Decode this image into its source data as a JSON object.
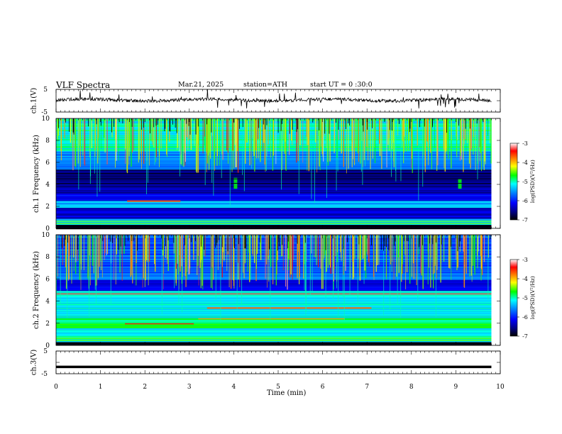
{
  "header": {
    "title": "VLF Spectra",
    "date": "Mar.21, 2025",
    "station": "station=ATH",
    "start": "start UT =   0 :30:0"
  },
  "colors": {
    "background": "#ffffff",
    "colormap": [
      "#000000",
      "#00007f",
      "#0000ff",
      "#0080ff",
      "#00ffff",
      "#00ff00",
      "#ffff00",
      "#ff8000",
      "#ff0000",
      "#ffffff"
    ]
  },
  "chart_data": [
    {
      "type": "line",
      "panel": "ch1-waveform",
      "ylabel": "ch.1(V)",
      "ylim": [
        -5,
        5
      ],
      "yticks": [
        "5",
        "-5"
      ],
      "trace_level": 0.3
    },
    {
      "type": "heatmap",
      "panel": "ch1-spectrogram",
      "ylabel": "ch.1 Frequency (kHz)",
      "ylim": [
        0,
        10
      ],
      "yticks": [
        "0",
        "2",
        "4",
        "6",
        "8",
        "10"
      ],
      "colorbar": {
        "label": "log(PSD)(V²/Hz)",
        "range": [
          -7,
          -3
        ],
        "ticks": [
          "-3",
          "-4",
          "-5",
          "-6",
          "-7"
        ]
      }
    },
    {
      "type": "heatmap",
      "panel": "ch2-spectrogram",
      "ylabel": "ch.2 Frequency (kHz)",
      "ylim": [
        0,
        10
      ],
      "yticks": [
        "0",
        "2",
        "4",
        "6",
        "8",
        "10"
      ],
      "colorbar": {
        "label": "log(PSD)(V²/Hz)",
        "range": [
          -7,
          -3
        ],
        "ticks": [
          "-3",
          "-4",
          "-5",
          "-6",
          "-7"
        ]
      }
    },
    {
      "type": "line",
      "panel": "ch3-waveform",
      "ylabel": "ch.3(V)",
      "ylim": [
        -5,
        5
      ],
      "yticks": [
        "5",
        "-5"
      ],
      "trace_level": -2.0
    }
  ],
  "xaxis": {
    "xlabel": "Time (min)",
    "xlim": [
      0,
      10
    ],
    "ticks": [
      "0",
      "1",
      "2",
      "3",
      "4",
      "5",
      "6",
      "7",
      "8",
      "9",
      "10"
    ],
    "data_end": 9.8
  }
}
